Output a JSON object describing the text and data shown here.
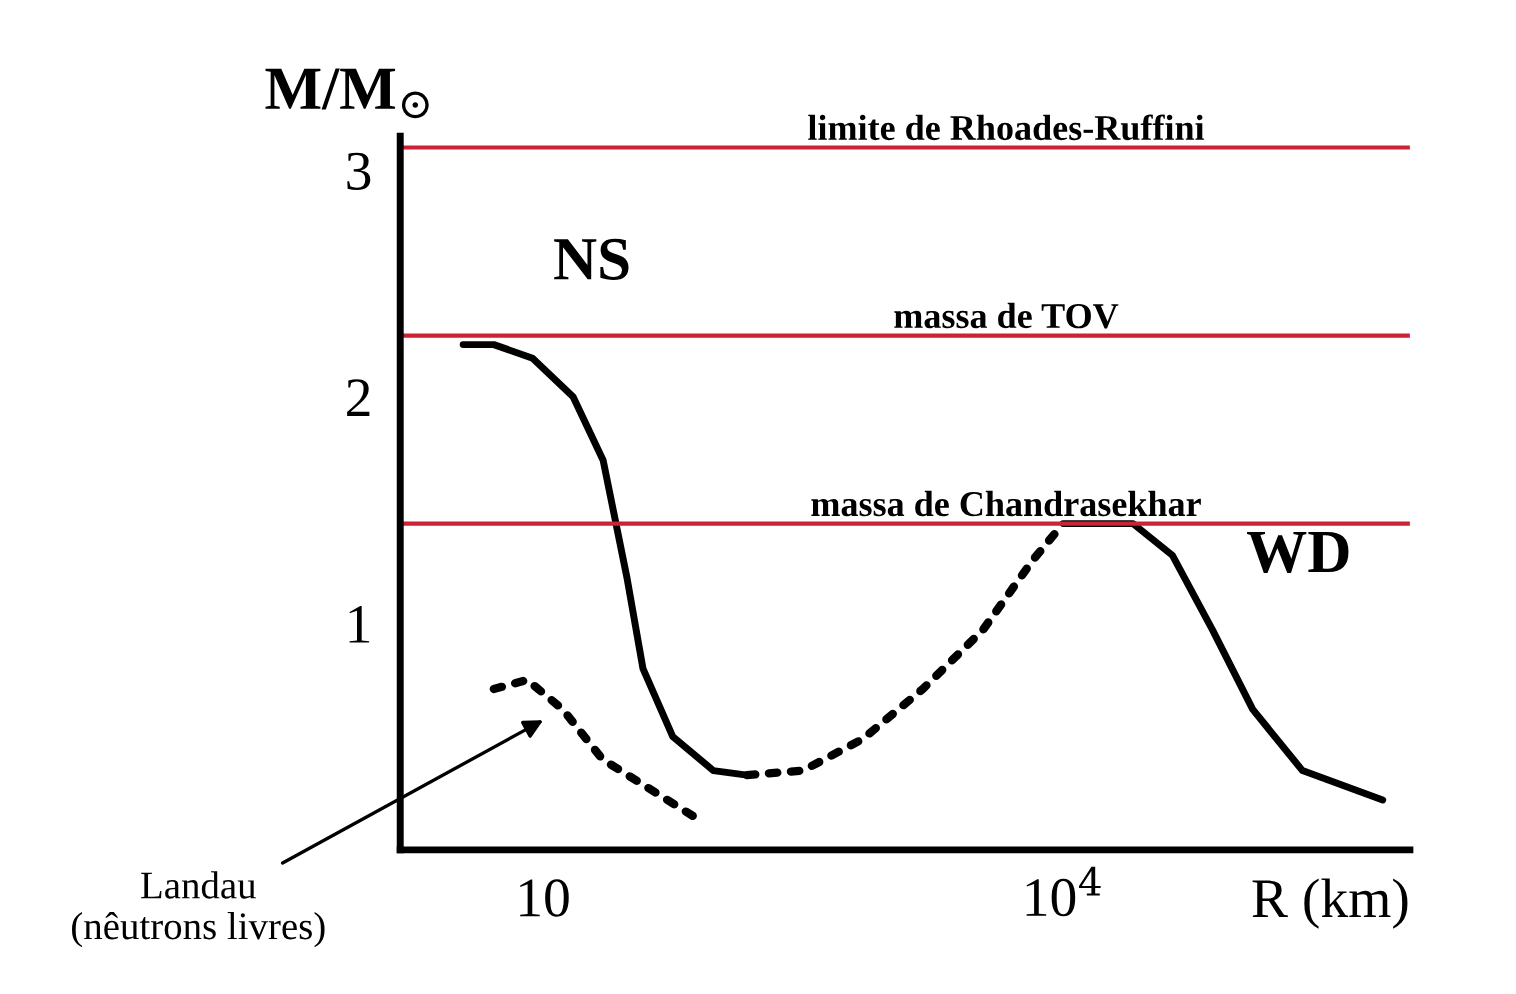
{
  "chart_data": {
    "type": "line",
    "log": "x",
    "ylabel": "M/M$_{⊙}$",
    "xlabel": "R (km)",
    "xlim": [
      1.5,
      1000000
    ],
    "xticks": [
      10,
      {
        "value": 10000,
        "label": "10$^{4}$"
      }
    ],
    "ylim": [
      0,
      3.15
    ],
    "yticks": [
      1,
      2,
      3
    ],
    "grid": false,
    "legend": false,
    "series": [
      {
        "color": "#000000",
        "line_style": "solid",
        "x": [
          3.46,
          5.2,
          8.7,
          14.9,
          22.2,
          30.5,
          37.7,
          56,
          96,
          150
        ],
        "values": [
          2.23,
          2.23,
          2.17,
          2.0,
          1.72,
          1.2,
          0.8,
          0.5,
          0.35,
          0.33
        ]
      },
      {
        "color": "#000000",
        "line_style": "dotted",
        "x": [
          150,
          316,
          700,
          1550,
          3440,
          6700,
          10000
        ],
        "values": [
          0.33,
          0.35,
          0.49,
          0.71,
          0.97,
          1.28,
          1.44
        ]
      },
      {
        "color": "#000000",
        "line_style": "solid",
        "x": [
          10000,
          25300,
          42700,
          72800,
          124000,
          240000,
          697000
        ],
        "values": [
          1.44,
          1.44,
          1.3,
          0.97,
          0.62,
          0.35,
          0.22
        ]
      },
      {
        "name": "Landau\n(nêutrons livres)",
        "color": "#000000",
        "line_style": "dotted",
        "x": [
          5.2,
          8.1,
          13,
          22,
          73
        ],
        "values": [
          0.71,
          0.75,
          0.62,
          0.4,
          0.15
        ]
      }
    ],
    "ref_lines": [
      {
        "axis": "y",
        "value": 3.1,
        "label": "limite de Rhoades-Ruffini",
        "color": "#cc2233"
      },
      {
        "axis": "y",
        "value": 2.27,
        "label": "massa de TOV",
        "color": "#cc2233"
      },
      {
        "axis": "y",
        "value": 1.44,
        "label": "massa de Chandrasekhar",
        "color": "#cc2233"
      }
    ],
    "annotations": [
      "NS",
      "WD"
    ]
  }
}
